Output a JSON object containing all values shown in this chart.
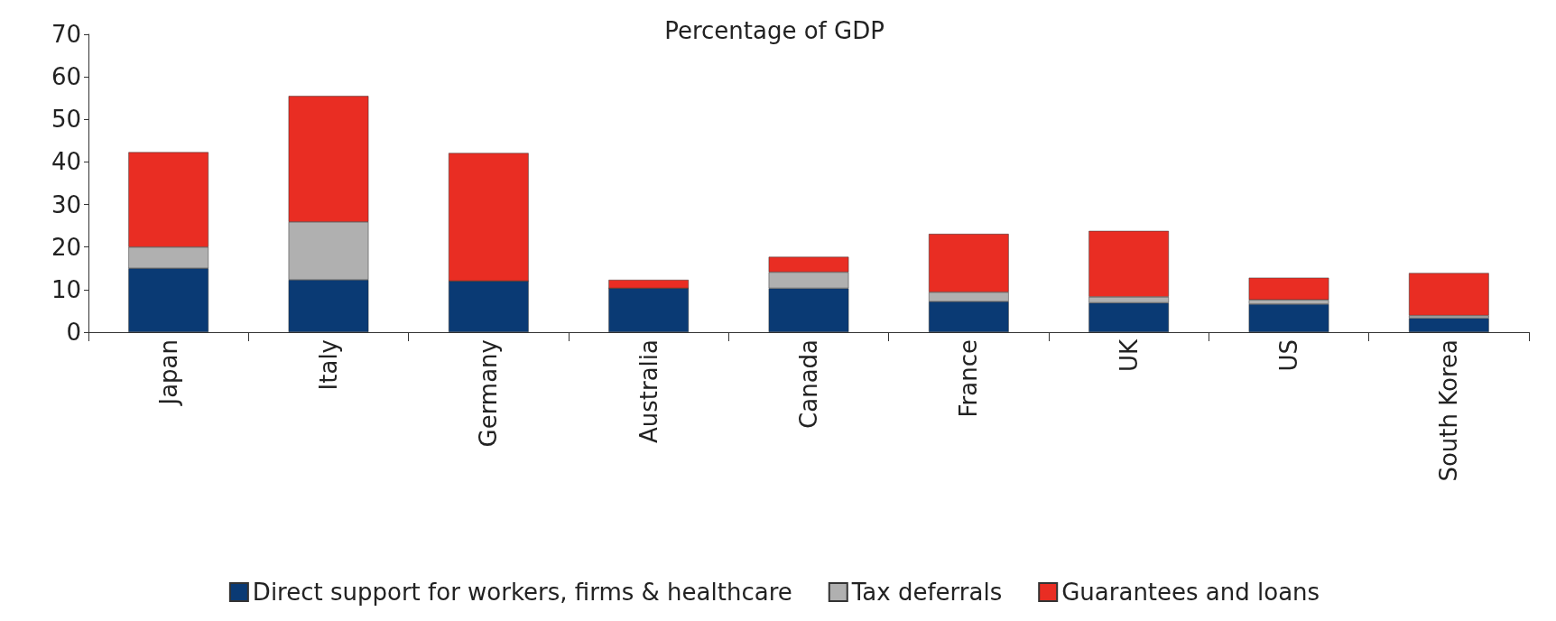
{
  "chart_data": {
    "type": "bar",
    "title": "Percentage of GDP",
    "stacked": true,
    "categories": [
      "Japan",
      "Italy",
      "Germany",
      "Australia",
      "Canada",
      "France",
      "UK",
      "US",
      "South Korea"
    ],
    "series": [
      {
        "name": "Direct support for workers, firms & healthcare",
        "color": "#0a3a74",
        "values": [
          15,
          12.3,
          12,
          10.3,
          10.3,
          7.2,
          6.9,
          6.6,
          3.3
        ]
      },
      {
        "name": "Tax deferrals",
        "color": "#b0b0b0",
        "values": [
          5,
          13.6,
          0,
          0,
          3.8,
          2.2,
          1.4,
          1,
          0.6
        ]
      },
      {
        "name": "Guarantees and loans",
        "color": "#e92d23",
        "values": [
          22.3,
          29.6,
          30.1,
          2,
          3.6,
          13.7,
          15.5,
          5.2,
          10
        ]
      }
    ],
    "ylim": [
      0,
      70
    ],
    "yticks": [
      0,
      10,
      20,
      30,
      40,
      50,
      60,
      70
    ],
    "grid": false,
    "legend": "bottom"
  }
}
